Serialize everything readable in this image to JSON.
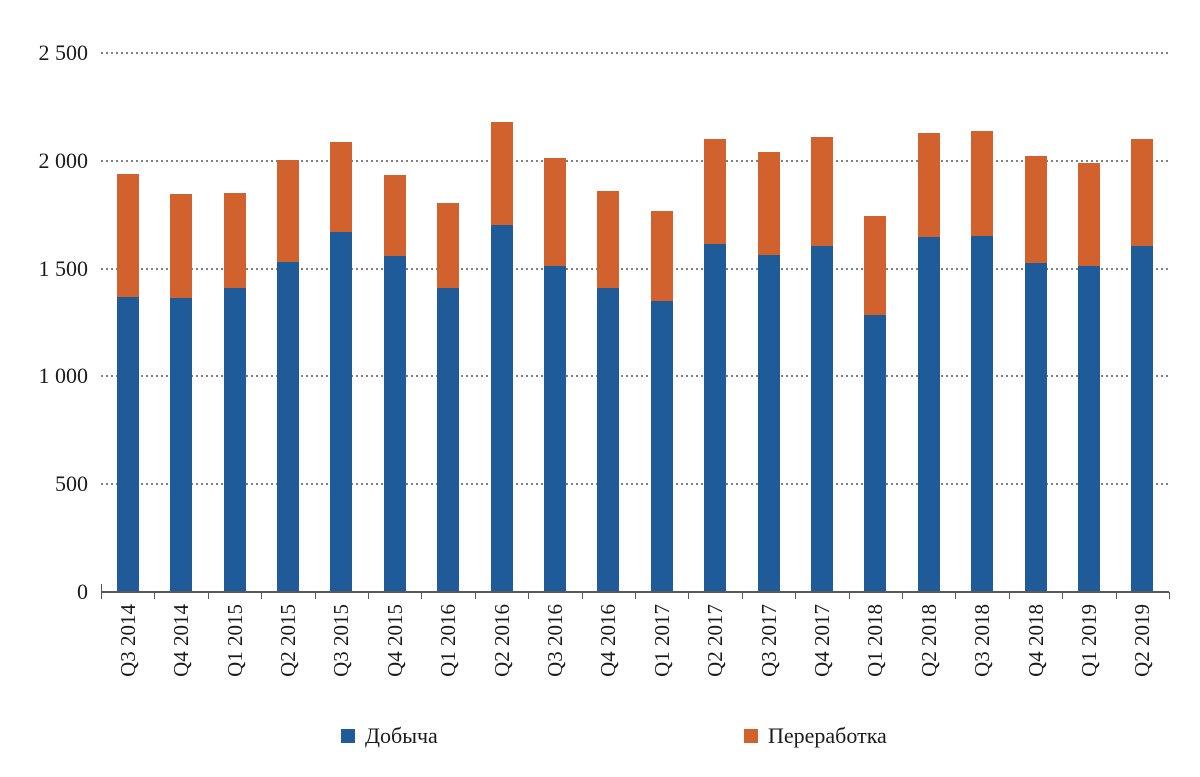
{
  "colors": {
    "production": "#1f5b99",
    "processing": "#d1622e",
    "grid_dots": "#808080",
    "axis": "#595959",
    "text": "#1a1a1a"
  },
  "legend": {
    "items": [
      {
        "label": "Добыча",
        "color_key": "production"
      },
      {
        "label": "Переработка",
        "color_key": "processing"
      }
    ]
  },
  "y_axis": {
    "ticks": [
      {
        "label": "0",
        "value": 0
      },
      {
        "label": "500",
        "value": 500
      },
      {
        "label": "1 000",
        "value": 1000
      },
      {
        "label": "1 500",
        "value": 1500
      },
      {
        "label": "2 000",
        "value": 2000
      },
      {
        "label": "2 500",
        "value": 2500
      }
    ]
  },
  "chart_data": {
    "type": "bar",
    "stacked": true,
    "title": "",
    "xlabel": "",
    "ylabel": "",
    "ylim": [
      0,
      2500
    ],
    "grid": "dotted horizontal gridlines at every 500",
    "legend_position": "bottom",
    "categories": [
      "Q3 2014",
      "Q4 2014",
      "Q1 2015",
      "Q2 2015",
      "Q3 2015",
      "Q4 2015",
      "Q1 2016",
      "Q2 2016",
      "Q3 2016",
      "Q4 2016",
      "Q1 2017",
      "Q2 2017",
      "Q3 2017",
      "Q4 2017",
      "Q1 2018",
      "Q2 2018",
      "Q3 2018",
      "Q4 2018",
      "Q1 2019",
      "Q2 2019"
    ],
    "series": [
      {
        "name": "Добыча",
        "color_key": "production",
        "values": [
          1370,
          1365,
          1410,
          1530,
          1670,
          1560,
          1410,
          1700,
          1510,
          1410,
          1350,
          1615,
          1565,
          1605,
          1285,
          1645,
          1650,
          1525,
          1510,
          1605
        ]
      },
      {
        "name": "Переработка",
        "color_key": "processing",
        "values": [
          570,
          480,
          440,
          475,
          415,
          375,
          395,
          480,
          505,
          450,
          415,
          485,
          475,
          505,
          460,
          485,
          490,
          495,
          480,
          495
        ]
      }
    ],
    "totals": [
      1940,
      1845,
      1850,
      2005,
      2085,
      1935,
      1805,
      2180,
      2015,
      1860,
      1765,
      2100,
      2040,
      2110,
      1745,
      2130,
      2140,
      2020,
      1990,
      2100
    ]
  }
}
